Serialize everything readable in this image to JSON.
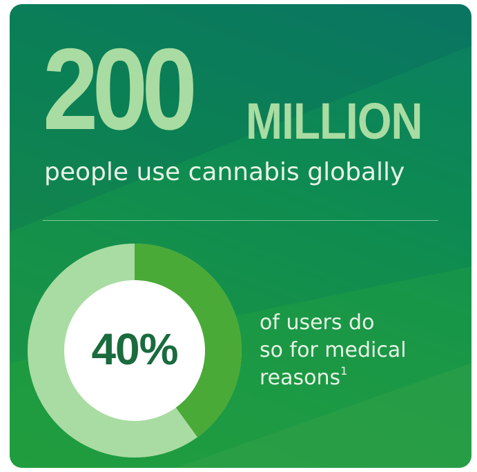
{
  "headline": {
    "number": "200",
    "unit": "MILLION"
  },
  "subtitle": "people use cannabis globally",
  "stat": {
    "percent_label": "40%",
    "percent_value": 40,
    "caption_lines": [
      "of users do",
      "so for medical",
      "reasons"
    ],
    "footnote": "1"
  },
  "colors": {
    "headline": "#a9dca2",
    "donut_filled": "#4aaa38",
    "donut_remaining": "#a9dca2",
    "percent_text": "#1a6b3e"
  }
}
